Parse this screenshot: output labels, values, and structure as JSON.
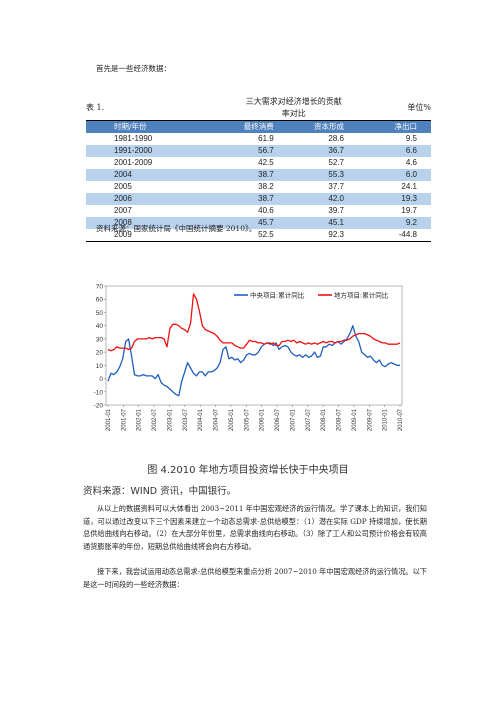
{
  "intro": "首先是一些经济数据：",
  "table": {
    "label": "表 1.",
    "title": "三大需求对经济增长的贡献率对比",
    "unit": "单位%",
    "headers": [
      "时期/年份",
      "最终消费",
      "资本形成",
      "净出口"
    ],
    "rows": [
      [
        "1981-1990",
        "61.9",
        "28.6",
        "9.5"
      ],
      [
        "1991-2000",
        "56.7",
        "36.7",
        "6.6"
      ],
      [
        "2001-2009",
        "42.5",
        "52.7",
        "4.6"
      ],
      [
        "2004",
        "38.7",
        "55.3",
        "6.0"
      ],
      [
        "2005",
        "38.2",
        "37.7",
        "24.1"
      ],
      [
        "2006",
        "38.7",
        "42.0",
        "19.3"
      ],
      [
        "2007",
        "40.6",
        "39.7",
        "19.7"
      ],
      [
        "2008",
        "45.7",
        "45.1",
        "9.2"
      ],
      [
        "2009",
        "52.5",
        "92.3",
        "-44.8"
      ]
    ],
    "highlight_rows": [
      1,
      3,
      5,
      7
    ]
  },
  "table_source": "资料来源：国家统计局《中国统计摘要 2010》。",
  "chart_data": {
    "type": "line",
    "ylim": [
      -20,
      70
    ],
    "yticks": [
      70,
      60,
      50,
      40,
      30,
      20,
      10,
      0,
      -10,
      -20
    ],
    "xticks": [
      "2001-01",
      "2001-07",
      "2002-01",
      "2002-07",
      "2003-01",
      "2003-07",
      "2004-01",
      "2004-07",
      "2005-01",
      "2005-07",
      "2006-01",
      "2006-07",
      "2007-01",
      "2007-07",
      "2008-01",
      "2008-07",
      "2009-01",
      "2009-07",
      "2010-01",
      "2010-07"
    ],
    "series": [
      {
        "name": "中央项目:累计同比",
        "color": "#1f5fbf",
        "values": [
          -2,
          4,
          3,
          5,
          9,
          15,
          28,
          30,
          17,
          3,
          2,
          2,
          3,
          2,
          2,
          2,
          0,
          3,
          -3,
          -5,
          -6,
          -8,
          -10,
          -12,
          -13,
          -2,
          5,
          12,
          8,
          4,
          2,
          5,
          5,
          2,
          5,
          5,
          6,
          8,
          12,
          22,
          24,
          15,
          16,
          14,
          15,
          12,
          14,
          18,
          19,
          18,
          18,
          20,
          24,
          26,
          27,
          27,
          25,
          27,
          22,
          24,
          25,
          24,
          20,
          18,
          17,
          18,
          16,
          18,
          16,
          17,
          20,
          16,
          17,
          24,
          24,
          26,
          25,
          27,
          28,
          26,
          28,
          30,
          34,
          40,
          32,
          28,
          20,
          18,
          16,
          17,
          14,
          12,
          14,
          10,
          9,
          11,
          12,
          11,
          10,
          10
        ]
      },
      {
        "name": "地方项目:累计同比",
        "color": "#ee1111",
        "values": [
          22,
          21,
          22,
          24,
          23,
          23,
          23,
          22,
          23,
          28,
          30,
          30,
          30,
          30,
          31,
          30,
          31,
          31,
          31,
          30,
          24,
          38,
          41,
          41,
          40,
          38,
          37,
          35,
          42,
          64,
          60,
          51,
          40,
          37,
          36,
          35,
          34,
          32,
          29,
          27,
          27,
          27,
          27,
          25,
          24,
          23,
          23,
          26,
          29,
          28,
          28,
          27,
          27,
          26,
          27,
          26,
          27,
          25,
          25,
          28,
          28,
          29,
          28,
          29,
          27,
          28,
          27,
          26,
          27,
          26,
          27,
          26,
          27,
          28,
          27,
          28,
          28,
          27,
          28,
          28,
          29,
          29,
          30,
          32,
          33,
          34,
          34,
          34,
          33,
          32,
          30,
          29,
          28,
          27,
          27,
          26,
          26,
          26,
          26,
          27
        ]
      }
    ]
  },
  "figure_caption": "图 4.2010 年地方项目投资增长快于中央项目",
  "figure_source": "资料来源：WIND 资讯，中国银行。",
  "paragraph1": "从以上的数据资料可以大体看出 2003~2011 年中国宏观经济的运行情况。学了课本上的知识，我们知道，可以通过改变以下三个因素来建立一个动态总需求-总供给模型：（1）潜在实际 GDP 持续增加，使长期总供给曲线向右移动。（2）在大部分年份里，总需求曲线向右移动。（3）除了工人和公司预计价格会有较高通货膨胀率的年份，短期总供给曲线将会向右方移动。",
  "paragraph2": "接下来，我尝试运用动态总需求-总供给模型来重点分析 2007~2010 年中国宏观经济的运行情况。以下是这一时间段的一些经济数据："
}
